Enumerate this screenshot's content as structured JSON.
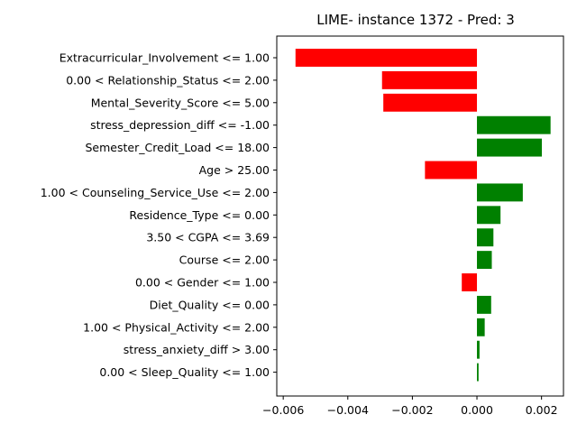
{
  "chart_data": {
    "type": "bar",
    "orientation": "horizontal",
    "title": "LIME- instance 1372 - Pred: 3",
    "xlabel": "",
    "ylabel": "",
    "xlim": [
      -0.0062,
      0.00268
    ],
    "xticks": [
      -0.006,
      -0.004,
      -0.002,
      0.0,
      0.002
    ],
    "xtick_labels": [
      "−0.006",
      "−0.004",
      "−0.002",
      "0.000",
      "0.002"
    ],
    "grid": false,
    "legend": "none",
    "positive_color": "#008000",
    "negative_color": "#ff0000",
    "categories": [
      "Extracurricular_Involvement <= 1.00",
      "0.00 < Relationship_Status <= 2.00",
      "Mental_Severity_Score <= 5.00",
      "stress_depression_diff <= -1.00",
      "Semester_Credit_Load <= 18.00",
      "Age > 25.00",
      "1.00 < Counseling_Service_Use <= 2.00",
      "Residence_Type <= 0.00",
      "3.50 < CGPA <= 3.69",
      "Course <= 2.00",
      "0.00 < Gender <= 1.00",
      "Diet_Quality <= 0.00",
      "1.00 < Physical_Activity <= 2.00",
      "stress_anxiety_diff > 3.00",
      "0.00 < Sleep_Quality <= 1.00"
    ],
    "values": [
      -0.00562,
      -0.00294,
      -0.0029,
      0.00228,
      0.00201,
      -0.00161,
      0.00142,
      0.00073,
      0.00051,
      0.00046,
      -0.00047,
      0.00044,
      0.00024,
      8e-05,
      5e-05
    ]
  }
}
